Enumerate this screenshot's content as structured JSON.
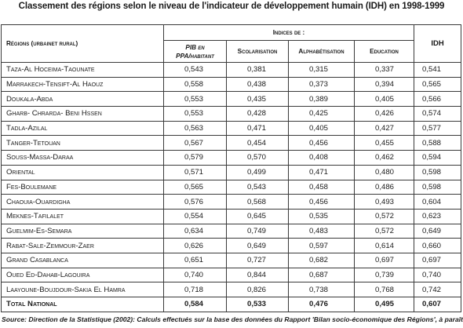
{
  "title": "Classement des régions selon le niveau de l'indicateur de développement humain (IDH) en 1998-1999",
  "header": {
    "region": "Régions (urbainet rural)",
    "indices": "Indices de :",
    "pib_line1": "PIB en",
    "pib_line2": "PPA/habitant",
    "scolarisation": "Scolarisation",
    "alphabetisation": "Alphabétisation",
    "education": "Education",
    "idh": "IDH"
  },
  "rows": [
    {
      "region": "Taza-Al Hoceima-Taounate",
      "pib": "0,543",
      "scol": "0,381",
      "alpha": "0,315",
      "edu": "0,337",
      "idh": "0,541"
    },
    {
      "region": "Marrakech-Tensift-Al Haouz",
      "pib": "0,558",
      "scol": "0,438",
      "alpha": "0,373",
      "edu": "0,394",
      "idh": "0,565"
    },
    {
      "region": "Doukala-Abda",
      "pib": "0,553",
      "scol": "0,435",
      "alpha": "0,389",
      "edu": "0,405",
      "idh": "0,566"
    },
    {
      "region": "Gharb- Chrarda- Beni Hssen",
      "pib": "0,553",
      "scol": "0,428",
      "alpha": "0,425",
      "edu": "0,426",
      "idh": "0,574"
    },
    {
      "region": "Tadla-Azilal",
      "pib": "0,563",
      "scol": "0,471",
      "alpha": "0,405",
      "edu": "0,427",
      "idh": "0,577"
    },
    {
      "region": "Tanger-Tetouan",
      "pib": "0,567",
      "scol": "0,454",
      "alpha": "0,456",
      "edu": "0,455",
      "idh": "0,588"
    },
    {
      "region": "Souss-Massa-Daraa",
      "pib": "0,579",
      "scol": "0,570",
      "alpha": "0,408",
      "edu": "0,462",
      "idh": "0,594"
    },
    {
      "region": "Oriental",
      "pib": "0,571",
      "scol": "0,499",
      "alpha": "0,471",
      "edu": "0,480",
      "idh": "0,598"
    },
    {
      "region": "Fes-Boulemane",
      "pib": "0,565",
      "scol": "0,543",
      "alpha": "0,458",
      "edu": "0,486",
      "idh": "0,598"
    },
    {
      "region": "Chaouia-Ouardigha",
      "pib": "0,576",
      "scol": "0,568",
      "alpha": "0,456",
      "edu": "0,493",
      "idh": "0,604"
    },
    {
      "region": "Meknes-Tafilalet",
      "pib": "0,554",
      "scol": "0,645",
      "alpha": "0,535",
      "edu": "0,572",
      "idh": "0,623"
    },
    {
      "region": "Guelmim-Es-Semara",
      "pib": "0,634",
      "scol": "0,749",
      "alpha": "0,483",
      "edu": "0,572",
      "idh": "0,649"
    },
    {
      "region": "Rabat-Sale-Zemmour-Zaer",
      "pib": "0,626",
      "scol": "0,649",
      "alpha": "0,597",
      "edu": "0,614",
      "idh": "0,660"
    },
    {
      "region": "Grand Casablanca",
      "pib": "0,651",
      "scol": "0,727",
      "alpha": "0,682",
      "edu": "0,697",
      "idh": "0,697"
    },
    {
      "region": "Oued Ed-Dahab-Lagouira",
      "pib": "0,740",
      "scol": "0,844",
      "alpha": "0,687",
      "edu": "0,739",
      "idh": "0,740"
    },
    {
      "region": "Laayoune-Boujdour-Sakia El Hamra",
      "pib": "0,718",
      "scol": "0,826",
      "alpha": "0,738",
      "edu": "0,768",
      "idh": "0,742"
    },
    {
      "region": "Total National",
      "pib": "0,584",
      "scol": "0,533",
      "alpha": "0,476",
      "edu": "0,495",
      "idh": "0,607"
    }
  ],
  "source": "Source: Direction de la Statistique (2002): Calculs effectués sur la base des données du Rapport 'Bilan socio-économique des  Régions', à paraître."
}
